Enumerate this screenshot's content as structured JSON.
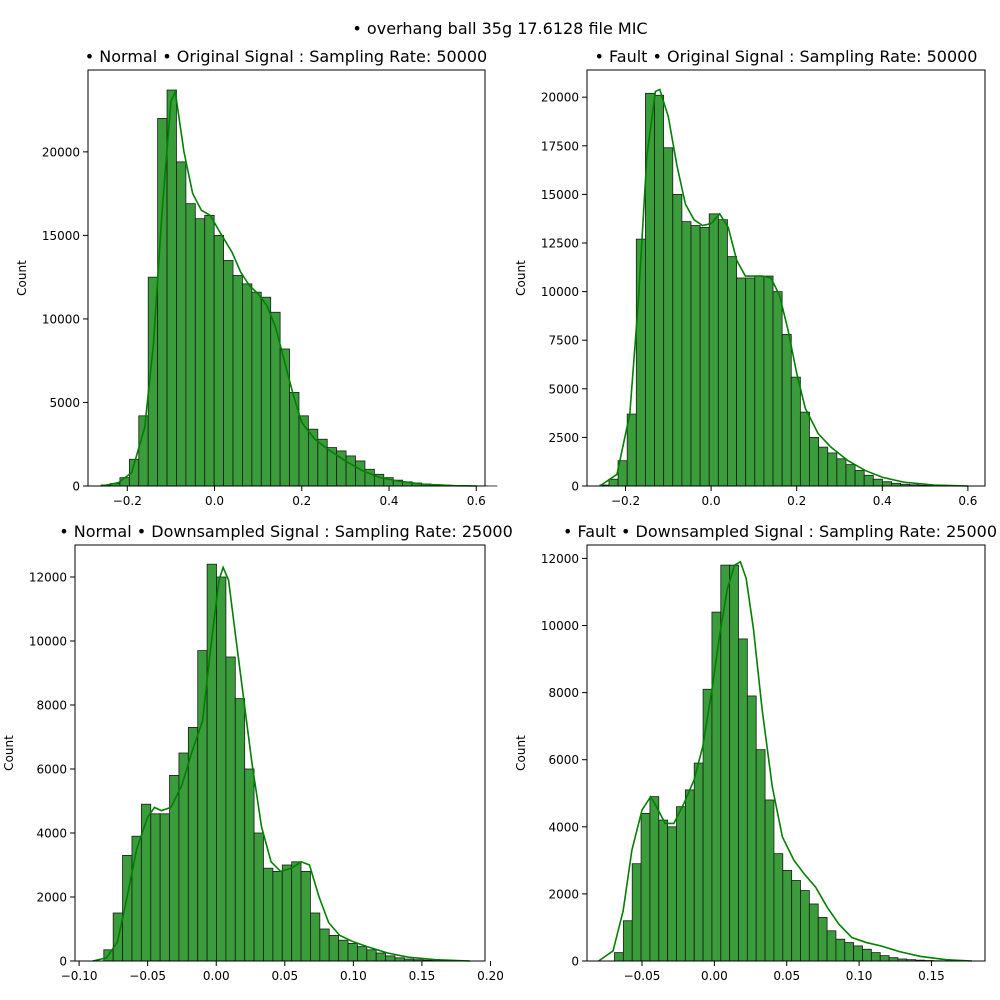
{
  "figure": {
    "suptitle": "• overhang ball 35g 17.6128 file MIC",
    "bar_color": "#3a9c3a",
    "kde_color": "#008000"
  },
  "chart_data": [
    {
      "type": "bar",
      "title": "• Normal • Original Signal : Sampling Rate: 50000",
      "xlabel": "",
      "ylabel": "Count",
      "xlim": [
        -0.29,
        0.62
      ],
      "ylim": [
        0,
        24900
      ],
      "xticks": [
        -0.2,
        0.0,
        0.2,
        0.4,
        0.6
      ],
      "xtick_labels": [
        "−0.2",
        "0.0",
        "0.2",
        "0.4",
        "0.6"
      ],
      "yticks": [
        0,
        5000,
        10000,
        15000,
        20000
      ],
      "ytick_labels": [
        "0",
        "5000",
        "10000",
        "15000",
        "20000"
      ],
      "bin_start": -0.26,
      "bin_width": 0.0216,
      "values": [
        60,
        150,
        500,
        1600,
        4200,
        12500,
        22000,
        23700,
        19400,
        16900,
        16000,
        16200,
        15000,
        13500,
        12600,
        12100,
        11600,
        11300,
        10400,
        8200,
        5600,
        4200,
        3400,
        2800,
        2300,
        2100,
        1800,
        1500,
        1000,
        700,
        500,
        350,
        250,
        180,
        120,
        80,
        50,
        30,
        20,
        10,
        6,
        3
      ],
      "kde_x": [
        -0.26,
        -0.22,
        -0.19,
        -0.16,
        -0.14,
        -0.12,
        -0.1,
        -0.09,
        -0.07,
        -0.05,
        -0.03,
        -0.01,
        0.01,
        0.04,
        0.06,
        0.08,
        0.1,
        0.12,
        0.14,
        0.16,
        0.18,
        0.2,
        0.23,
        0.26,
        0.3,
        0.34,
        0.38,
        0.42,
        0.48,
        0.55,
        0.6
      ],
      "kde_y": [
        0,
        200,
        800,
        3500,
        8500,
        16500,
        23000,
        23600,
        20000,
        17500,
        16500,
        16200,
        15300,
        14000,
        12800,
        12000,
        11500,
        10800,
        9500,
        7500,
        5500,
        3800,
        2800,
        2200,
        1500,
        900,
        500,
        300,
        100,
        20,
        0
      ]
    },
    {
      "type": "bar",
      "title": "• Fault • Original Signal : Sampling Rate: 50000",
      "xlabel": "",
      "ylabel": "Count",
      "xlim": [
        -0.29,
        0.64
      ],
      "ylim": [
        0,
        21400
      ],
      "xticks": [
        -0.2,
        0.0,
        0.2,
        0.4,
        0.6
      ],
      "xtick_labels": [
        "−0.2",
        "0.0",
        "0.2",
        "0.4",
        "0.6"
      ],
      "yticks": [
        0,
        2500,
        5000,
        7500,
        10000,
        12500,
        15000,
        17500,
        20000
      ],
      "ytick_labels": [
        "0",
        "2500",
        "5000",
        "7500",
        "10000",
        "12500",
        "15000",
        "17500",
        "20000"
      ],
      "bin_start": -0.26,
      "bin_width": 0.0213,
      "values": [
        50,
        350,
        1300,
        3700,
        12700,
        20200,
        20100,
        17400,
        15000,
        13600,
        13400,
        13300,
        14000,
        13700,
        11800,
        10700,
        10700,
        10800,
        10800,
        10000,
        7800,
        5600,
        3800,
        2500,
        2000,
        1700,
        1400,
        1100,
        800,
        550,
        350,
        220,
        140,
        90,
        60,
        40,
        25,
        15,
        10,
        6,
        3,
        2
      ],
      "kde_x": [
        -0.26,
        -0.22,
        -0.19,
        -0.17,
        -0.15,
        -0.13,
        -0.12,
        -0.1,
        -0.08,
        -0.06,
        -0.04,
        -0.02,
        0.0,
        0.02,
        0.04,
        0.06,
        0.08,
        0.1,
        0.12,
        0.14,
        0.16,
        0.18,
        0.2,
        0.22,
        0.25,
        0.28,
        0.32,
        0.36,
        0.4,
        0.45,
        0.52,
        0.6
      ],
      "kde_y": [
        0,
        600,
        3700,
        9500,
        17000,
        20300,
        20400,
        19000,
        16500,
        14500,
        13700,
        13400,
        13500,
        14000,
        13300,
        11600,
        10800,
        10800,
        10800,
        10700,
        9800,
        8000,
        5800,
        4000,
        2700,
        2000,
        1300,
        800,
        450,
        200,
        50,
        0
      ]
    },
    {
      "type": "bar",
      "title": "• Normal • Downsampled Signal : Sampling Rate: 25000",
      "xlabel": "",
      "ylabel": "Count",
      "xlim": [
        -0.103,
        0.196
      ],
      "ylim": [
        0,
        13000
      ],
      "xticks": [
        -0.1,
        -0.05,
        0.0,
        0.05,
        0.1,
        0.15,
        0.2
      ],
      "xtick_labels": [
        "−0.10",
        "−0.05",
        "0.00",
        "0.05",
        "0.10",
        "0.15",
        "0.20"
      ],
      "yticks": [
        0,
        2000,
        4000,
        6000,
        8000,
        10000,
        12000
      ],
      "ytick_labels": [
        "0",
        "2000",
        "4000",
        "6000",
        "8000",
        "10000",
        "12000"
      ],
      "bin_start": -0.082,
      "bin_width": 0.00685,
      "values": [
        350,
        1500,
        3300,
        3900,
        4900,
        4600,
        4600,
        5800,
        6500,
        7300,
        9700,
        12400,
        12000,
        9500,
        8200,
        6000,
        4000,
        2900,
        2800,
        3000,
        3100,
        2800,
        1500,
        1000,
        800,
        650,
        550,
        450,
        350,
        250,
        160,
        100,
        60,
        40,
        25,
        15,
        8
      ],
      "kde_x": [
        -0.09,
        -0.08,
        -0.072,
        -0.065,
        -0.058,
        -0.05,
        -0.045,
        -0.04,
        -0.033,
        -0.025,
        -0.018,
        -0.01,
        -0.004,
        0.002,
        0.005,
        0.009,
        0.014,
        0.02,
        0.026,
        0.033,
        0.04,
        0.047,
        0.055,
        0.062,
        0.068,
        0.075,
        0.082,
        0.09,
        0.1,
        0.11,
        0.125,
        0.14,
        0.16,
        0.185
      ],
      "kde_y": [
        0,
        100,
        600,
        2000,
        3500,
        4500,
        4800,
        4700,
        4800,
        5500,
        6500,
        7500,
        9800,
        11900,
        12300,
        11900,
        10200,
        8200,
        6200,
        4200,
        3100,
        2800,
        2900,
        3100,
        3000,
        2000,
        1200,
        800,
        600,
        450,
        250,
        120,
        40,
        0
      ]
    },
    {
      "type": "bar",
      "title": "• Fault • Downsampled Signal : Sampling Rate: 25000",
      "xlabel": "",
      "ylabel": "Count",
      "xlim": [
        -0.088,
        0.187
      ],
      "ylim": [
        0,
        12400
      ],
      "xticks": [
        -0.05,
        0.0,
        0.05,
        0.1,
        0.15
      ],
      "xtick_labels": [
        "−0.05",
        "0.00",
        "0.05",
        "0.10",
        "0.15"
      ],
      "yticks": [
        0,
        2000,
        4000,
        6000,
        8000,
        10000,
        12000
      ],
      "ytick_labels": [
        "0",
        "2000",
        "4000",
        "6000",
        "8000",
        "10000",
        "12000"
      ],
      "bin_start": -0.069,
      "bin_width": 0.00612,
      "values": [
        250,
        1200,
        2900,
        4400,
        4900,
        4200,
        4000,
        4600,
        5100,
        5900,
        8100,
        10400,
        11800,
        11800,
        9600,
        7900,
        6300,
        4800,
        3200,
        2700,
        2400,
        2100,
        1700,
        1300,
        900,
        650,
        550,
        450,
        350,
        250,
        160,
        100,
        60,
        40,
        25,
        15,
        8
      ],
      "kde_x": [
        -0.08,
        -0.07,
        -0.063,
        -0.057,
        -0.05,
        -0.044,
        -0.04,
        -0.034,
        -0.028,
        -0.021,
        -0.014,
        -0.008,
        -0.002,
        0.004,
        0.009,
        0.014,
        0.018,
        0.022,
        0.027,
        0.033,
        0.04,
        0.047,
        0.055,
        0.062,
        0.07,
        0.078,
        0.086,
        0.095,
        0.105,
        0.115,
        0.128,
        0.142,
        0.16,
        0.178
      ],
      "kde_y": [
        0,
        300,
        1500,
        3300,
        4500,
        4900,
        4600,
        4100,
        4100,
        4700,
        5400,
        6400,
        8000,
        9800,
        11100,
        11800,
        11900,
        11400,
        9900,
        7500,
        5200,
        3700,
        3000,
        2600,
        2200,
        1600,
        1100,
        700,
        550,
        450,
        280,
        140,
        40,
        0
      ]
    }
  ]
}
